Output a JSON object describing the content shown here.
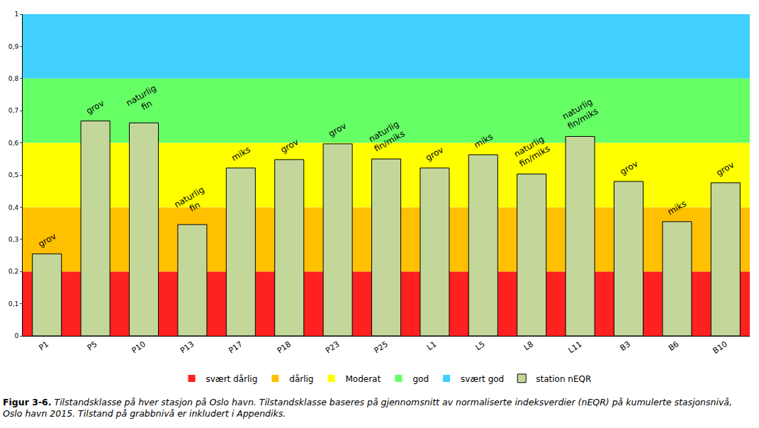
{
  "chart_data": {
    "type": "bar",
    "categories": [
      "P1",
      "P5",
      "P10",
      "P13",
      "P17",
      "P18",
      "P23",
      "P25",
      "L1",
      "L5",
      "L8",
      "L11",
      "B3",
      "B6",
      "B10"
    ],
    "series": [
      {
        "name": "station nEQR",
        "color": "#c4d79b",
        "values": [
          0.255,
          0.668,
          0.662,
          0.346,
          0.522,
          0.548,
          0.597,
          0.55,
          0.522,
          0.563,
          0.503,
          0.62,
          0.48,
          0.355,
          0.476
        ]
      }
    ],
    "annotations": [
      "grov",
      "grov",
      "naturlig\nfin",
      "naturlig\nfin",
      "miks",
      "grov",
      "grov",
      "naturlig\nfin/miks",
      "grov",
      "miks",
      "naturlig\nfin/miks",
      "naturlig\nfin/miks",
      "grov",
      "miks",
      "grov"
    ],
    "bands": [
      {
        "name": "svært dårlig",
        "color": "#ff2020",
        "from": 0,
        "to": 0.2
      },
      {
        "name": "dårlig",
        "color": "#ffc000",
        "from": 0.2,
        "to": 0.4
      },
      {
        "name": "Moderat",
        "color": "#ffff00",
        "from": 0.4,
        "to": 0.6
      },
      {
        "name": "god",
        "color": "#66ff66",
        "from": 0.6,
        "to": 0.8
      },
      {
        "name": "svært god",
        "color": "#40cfff",
        "from": 0.8,
        "to": 1
      }
    ],
    "ylim": [
      0,
      1
    ],
    "yticks": [
      0,
      {
        "value": 0.1,
        "label": "0,1"
      },
      {
        "value": 0.2,
        "label": "0,2"
      },
      {
        "value": 0.3,
        "label": "0,3"
      },
      {
        "value": 0.4,
        "label": "0,4"
      },
      {
        "value": 0.5,
        "label": "0,5"
      },
      {
        "value": 0.6,
        "label": "0,6"
      },
      {
        "value": 0.7,
        "label": "0,7"
      },
      {
        "value": 0.8,
        "label": "0,8"
      },
      {
        "value": 0.9,
        "label": "0,9"
      },
      1
    ],
    "grid": false,
    "legend": "bottom",
    "caption": {
      "label": "Figur 3-6.",
      "text": "Tilstandsklasse på hver stasjon på Oslo havn. Tilstandsklasse baseres på gjennomsnitt av normaliserte indeksverdier (nEQR) på kumulerte stasjonsnivå, Oslo havn 2015. Tilstand på grabbnivå er inkludert i Appendiks."
    }
  }
}
